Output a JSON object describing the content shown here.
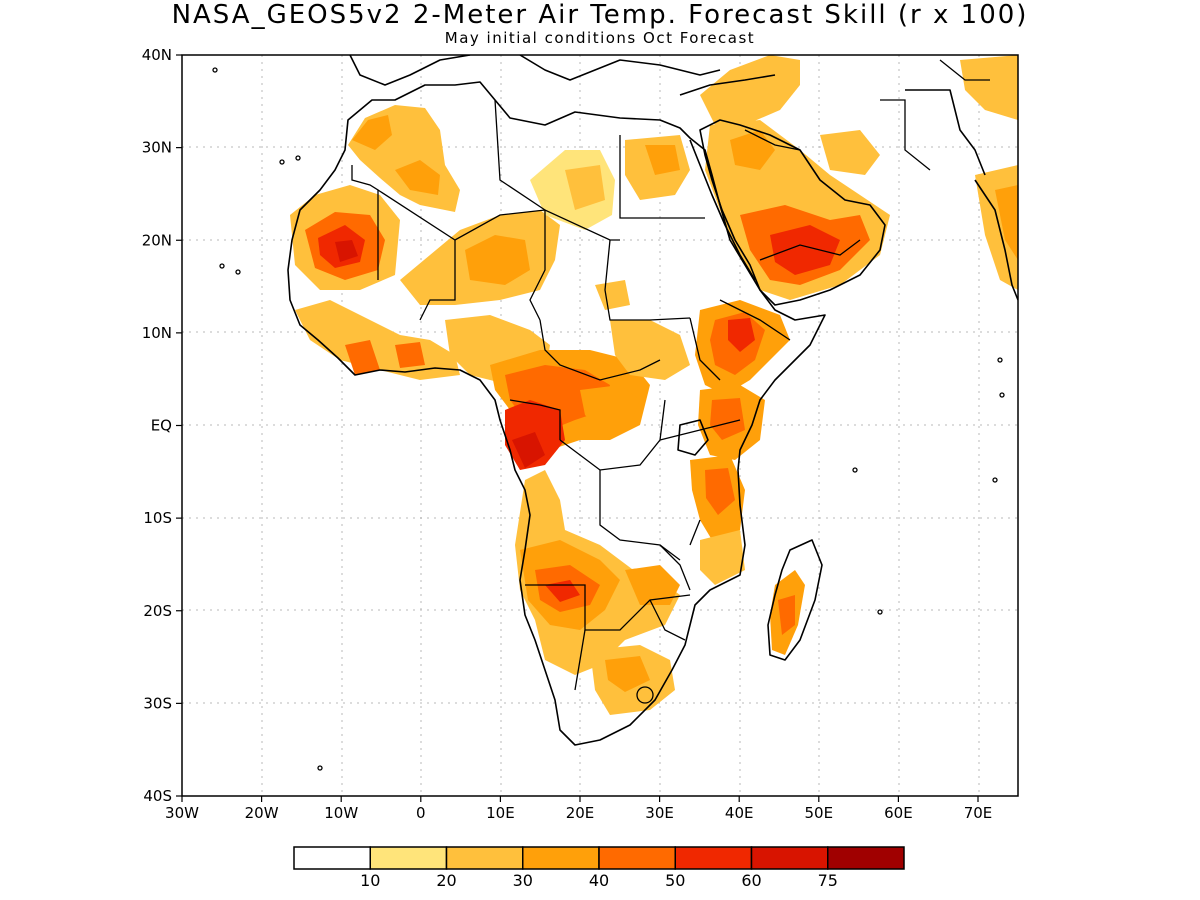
{
  "header": {
    "title": "NASA_GEOS5v2 2-Meter Air Temp. Forecast Skill (r x 100)",
    "subtitle": "May initial conditions  Oct Forecast"
  },
  "axes": {
    "y_ticks": [
      "40N",
      "30N",
      "20N",
      "10N",
      "EQ",
      "10S",
      "20S",
      "30S",
      "40S"
    ],
    "x_ticks": [
      "30W",
      "20W",
      "10W",
      "0",
      "10E",
      "20E",
      "30E",
      "40E",
      "50E",
      "60E",
      "70E"
    ]
  },
  "colorbar": {
    "colors": [
      "#ffffff",
      "#ffe47a",
      "#ffc03c",
      "#ffa00a",
      "#ff6a00",
      "#f02800",
      "#d81400",
      "#a00000"
    ],
    "labels": [
      "10",
      "20",
      "30",
      "40",
      "50",
      "60",
      "75"
    ]
  },
  "map": {
    "land_color": "#ffffff",
    "border_color": "#000000",
    "grid_color": "#b8b8b8"
  }
}
